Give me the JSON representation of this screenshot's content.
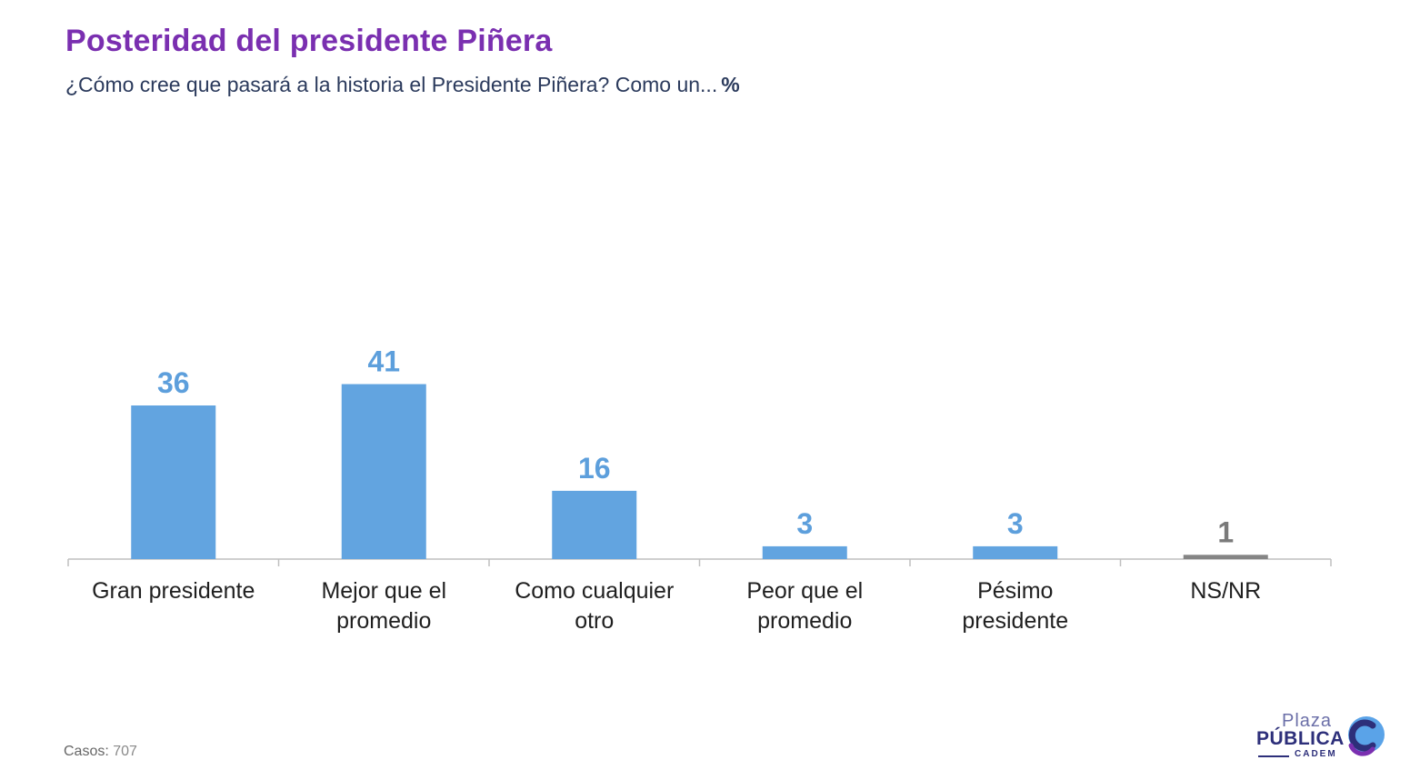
{
  "header": {
    "title": "Posteridad del presidente Piñera",
    "subtitle": "¿Cómo cree que pasará a la historia el Presidente Piñera? Como un...",
    "unit": "%"
  },
  "chart_data": {
    "type": "bar",
    "title": "Posteridad del presidente Piñera",
    "xlabel": "",
    "ylabel": "%",
    "ylim": [
      0,
      45
    ],
    "categories": [
      [
        "Gran presidente"
      ],
      [
        "Mejor que el",
        "promedio"
      ],
      [
        "Como cualquier",
        "otro"
      ],
      [
        "Peor que el",
        "promedio"
      ],
      [
        "Pésimo",
        "presidente"
      ],
      [
        "NS/NR"
      ]
    ],
    "values": [
      36,
      41,
      16,
      3,
      3,
      1
    ],
    "colors": [
      "#62a4e0",
      "#62a4e0",
      "#62a4e0",
      "#62a4e0",
      "#62a4e0",
      "#858585"
    ],
    "label_colors": [
      "#5d9fdc",
      "#5d9fdc",
      "#5d9fdc",
      "#5d9fdc",
      "#5d9fdc",
      "#7a7a7a"
    ]
  },
  "footer": {
    "cases_label": "Casos:",
    "cases_value": "707"
  },
  "logo": {
    "plaza": "Plaza",
    "publica": "PÚBLICA",
    "cadem": "CADEM",
    "color_primary": "#2d2f7a",
    "color_accent": "#5aa3e8",
    "color_purple": "#7a2fb0"
  }
}
